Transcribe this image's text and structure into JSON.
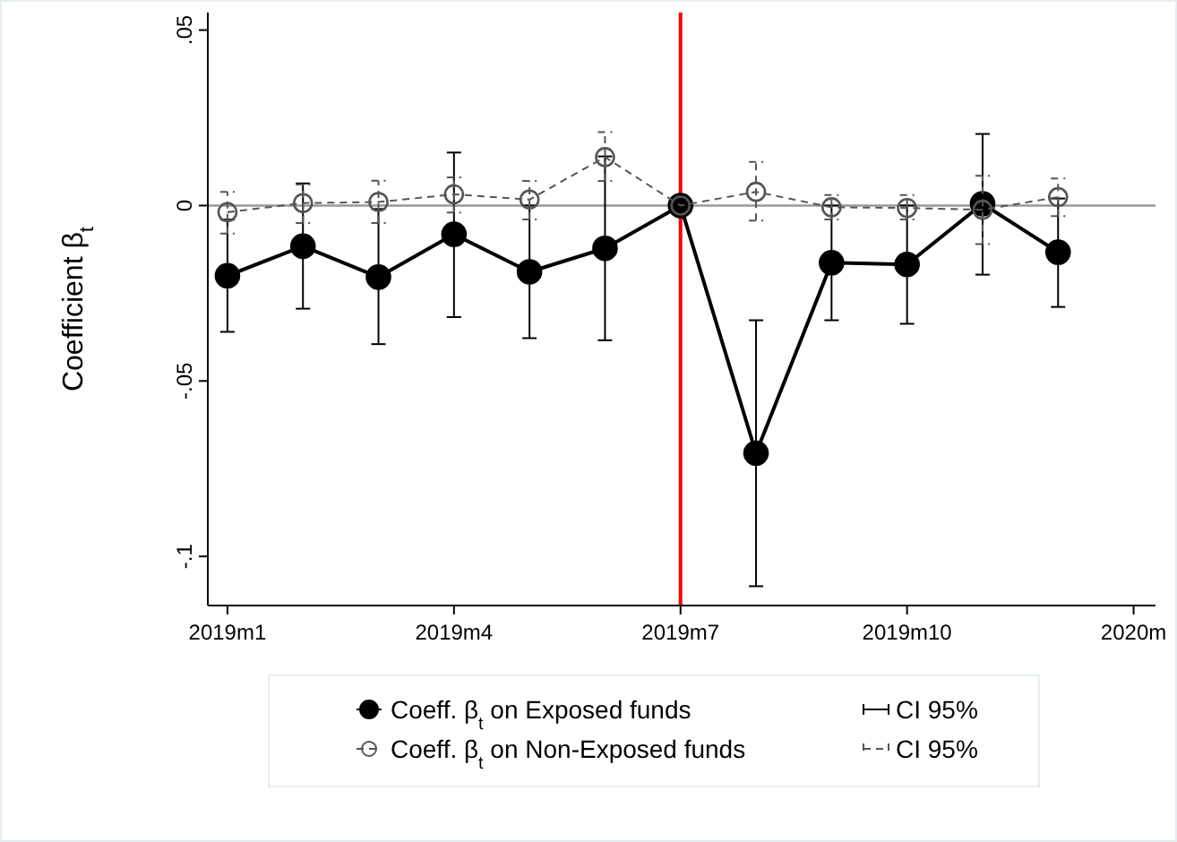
{
  "chart_data": {
    "type": "line",
    "ylabel": "Coefficient β$_{t}$",
    "categories": [
      "2019m1",
      null,
      null,
      "2019m4",
      null,
      null,
      "2019m7",
      null,
      null,
      "2019m10",
      null,
      null,
      "2020m"
    ],
    "ylim": [
      -0.114,
      0.055
    ],
    "yticks": [
      {
        "value": 0.05,
        "label": ".05"
      },
      {
        "value": 0,
        "label": "0"
      },
      {
        "value": -0.05,
        "label": "-.05"
      },
      {
        "value": -0.1,
        "label": "-.1"
      }
    ],
    "series": [
      {
        "name": "Coeff. β$_{t}$ on Exposed funds",
        "color": "#000000",
        "marker": "circle",
        "line_style": "solid",
        "values": [
          -0.02,
          -0.0116,
          -0.0204,
          -0.0082,
          -0.0189,
          -0.0122,
          0,
          -0.0706,
          -0.0163,
          -0.0168,
          0.0005,
          -0.0133,
          null
        ],
        "errors": [
          [
            -0.036,
            -0.004
          ],
          [
            -0.0294,
            0.0063
          ],
          [
            -0.0395,
            -0.001
          ],
          [
            -0.0318,
            0.0151
          ],
          [
            -0.0378,
            0
          ],
          [
            -0.0384,
            0.014
          ],
          null,
          [
            -0.1085,
            -0.0327
          ],
          [
            -0.0327,
            0
          ],
          [
            -0.0337,
            0
          ],
          [
            -0.0197,
            0.0204
          ],
          [
            -0.0289,
            0.002
          ],
          null
        ]
      },
      {
        "name": "Coeff. β$_{t}$ on Non-Exposed funds",
        "color": "#555555",
        "marker": "circle",
        "line_style": "dashed",
        "values": [
          -0.0019,
          0.0007,
          0.001,
          0.0032,
          0.0017,
          0.0138,
          0,
          0.0039,
          -0.0005,
          -0.0007,
          -0.0012,
          0.0024,
          null
        ],
        "errors": [
          [
            -0.008,
            0.0039
          ],
          [
            -0.005,
            0.006
          ],
          [
            -0.005,
            0.0071
          ],
          [
            -0.002,
            0.008
          ],
          [
            -0.004,
            0.007
          ],
          [
            0.007,
            0.0209
          ],
          null,
          [
            -0.0043,
            0.0124
          ],
          [
            -0.004,
            0.003
          ],
          [
            -0.004,
            0.003
          ],
          [
            -0.011,
            0.0085
          ],
          [
            -0.003,
            0.0077
          ],
          null
        ]
      }
    ],
    "ref_lines": [
      {
        "axis": "x",
        "value": "2019m7",
        "color": "#ff0000"
      },
      {
        "axis": "y",
        "value": 0,
        "color": "#999999"
      }
    ],
    "annotations": [
      "CI 95%",
      "CI 95%"
    ],
    "legend": "bottom",
    "grid": false
  }
}
